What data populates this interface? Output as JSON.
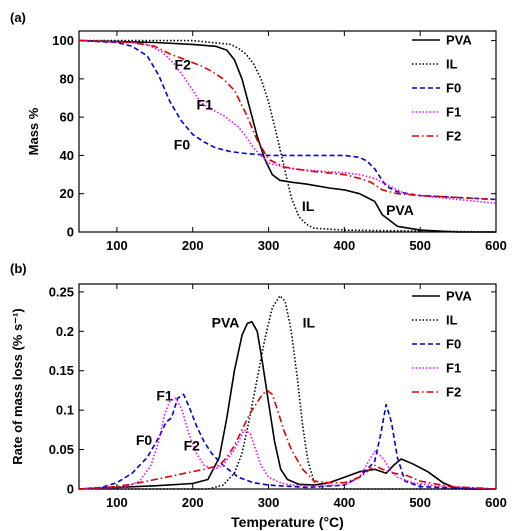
{
  "chart_data": [
    {
      "panel_label": "(a)",
      "type": "line",
      "xlabel": "",
      "ylabel": "Mass %",
      "xlim": [
        50,
        600
      ],
      "ylim": [
        0,
        105
      ],
      "xticks": [
        100,
        200,
        300,
        400,
        500,
        600
      ],
      "yticks": [
        0,
        20,
        40,
        60,
        80,
        100
      ],
      "legend_position": "top-right",
      "series": [
        {
          "name": "PVA",
          "color": "#000000",
          "dash": "solid",
          "x": [
            50,
            150,
            200,
            230,
            245,
            255,
            265,
            275,
            285,
            295,
            305,
            315,
            330,
            350,
            380,
            400,
            420,
            430,
            440,
            450,
            470,
            500,
            550,
            600
          ],
          "y": [
            100,
            99,
            98,
            97,
            95,
            90,
            80,
            65,
            50,
            38,
            30,
            27,
            26,
            25,
            23,
            22,
            20,
            18,
            16,
            9,
            3,
            1,
            0,
            0
          ]
        },
        {
          "name": "IL",
          "color": "#000000",
          "dash": "dotted",
          "x": [
            50,
            200,
            250,
            260,
            270,
            280,
            290,
            300,
            310,
            320,
            330,
            340,
            350,
            360,
            400,
            600
          ],
          "y": [
            100,
            100,
            98,
            96,
            93,
            88,
            80,
            68,
            52,
            35,
            18,
            8,
            4,
            2,
            1,
            0
          ]
        },
        {
          "name": "F0",
          "color": "#0000cc",
          "dash": "dashed",
          "x": [
            50,
            100,
            120,
            140,
            155,
            170,
            185,
            200,
            215,
            230,
            250,
            270,
            300,
            350,
            400,
            420,
            430,
            440,
            455,
            470,
            500,
            550,
            600
          ],
          "y": [
            100,
            99,
            97,
            92,
            82,
            68,
            58,
            51,
            47,
            44,
            42,
            41,
            40,
            40,
            40,
            39,
            37,
            33,
            24,
            21,
            19,
            18,
            17
          ]
        },
        {
          "name": "F1",
          "color": "#ff00ff",
          "dash": "dotted",
          "x": [
            50,
            120,
            140,
            160,
            175,
            190,
            200,
            210,
            220,
            230,
            240,
            250,
            260,
            270,
            280,
            300,
            330,
            360,
            400,
            420,
            440,
            460,
            480,
            500,
            550,
            600
          ],
          "y": [
            100,
            99,
            98,
            94,
            88,
            80,
            74,
            68,
            65,
            63,
            61,
            58,
            55,
            50,
            44,
            36,
            33,
            32,
            31,
            30,
            28,
            24,
            20,
            19,
            17,
            15
          ]
        },
        {
          "name": "F2",
          "color": "#dd0000",
          "dash": "dashdot",
          "x": [
            50,
            120,
            150,
            170,
            190,
            210,
            225,
            240,
            255,
            270,
            285,
            300,
            320,
            350,
            400,
            420,
            435,
            450,
            470,
            500,
            550,
            600
          ],
          "y": [
            100,
            99,
            97,
            93,
            90,
            87,
            84,
            80,
            74,
            62,
            48,
            38,
            34,
            32,
            30,
            28,
            26,
            22,
            20,
            19,
            18,
            17
          ]
        }
      ],
      "annotations": [
        {
          "text": "F2",
          "x": 176,
          "y": 85
        },
        {
          "text": "F1",
          "x": 205,
          "y": 64
        },
        {
          "text": "F0",
          "x": 175,
          "y": 43
        },
        {
          "text": "IL",
          "x": 344,
          "y": 11
        },
        {
          "text": "PVA",
          "x": 455,
          "y": 9
        }
      ]
    },
    {
      "panel_label": "(b)",
      "type": "line",
      "xlabel": "Temperature (°C)",
      "ylabel": "Rate of mass loss (% s⁻¹)",
      "xlim": [
        50,
        600
      ],
      "ylim": [
        0,
        0.26
      ],
      "xticks": [
        100,
        200,
        300,
        400,
        500,
        600
      ],
      "yticks": [
        0,
        0.05,
        0.1,
        0.15,
        0.2,
        0.25
      ],
      "ytick_labels": [
        "0",
        "0.05",
        "0.1",
        "0.15",
        "0.2",
        "0.25"
      ],
      "legend_position": "top-right",
      "series": [
        {
          "name": "PVA",
          "color": "#000000",
          "dash": "solid",
          "x": [
            50,
            100,
            150,
            200,
            220,
            235,
            245,
            255,
            265,
            272,
            278,
            285,
            292,
            300,
            308,
            316,
            325,
            340,
            360,
            380,
            400,
            420,
            440,
            455,
            465,
            475,
            490,
            510,
            530,
            545,
            560,
            600
          ],
          "y": [
            0,
            0.002,
            0.004,
            0.007,
            0.012,
            0.04,
            0.09,
            0.15,
            0.195,
            0.21,
            0.212,
            0.2,
            0.16,
            0.11,
            0.06,
            0.025,
            0.012,
            0.006,
            0.005,
            0.008,
            0.015,
            0.022,
            0.025,
            0.02,
            0.03,
            0.038,
            0.032,
            0.022,
            0.008,
            0.002,
            0,
            0
          ]
        },
        {
          "name": "IL",
          "color": "#000000",
          "dash": "dotted",
          "x": [
            50,
            220,
            240,
            255,
            265,
            275,
            285,
            295,
            305,
            315,
            322,
            330,
            338,
            345,
            352,
            360,
            366,
            375,
            600
          ],
          "y": [
            0,
            0,
            0.005,
            0.02,
            0.045,
            0.09,
            0.14,
            0.19,
            0.23,
            0.245,
            0.238,
            0.2,
            0.14,
            0.08,
            0.035,
            0.01,
            0.003,
            0,
            0
          ]
        },
        {
          "name": "F0",
          "color": "#0000cc",
          "dash": "dashed",
          "x": [
            50,
            80,
            100,
            120,
            140,
            155,
            165,
            172,
            180,
            188,
            195,
            205,
            215,
            225,
            240,
            260,
            280,
            300,
            350,
            400,
            420,
            430,
            440,
            448,
            455,
            462,
            470,
            480,
            500,
            550,
            600
          ],
          "y": [
            0,
            0.002,
            0.008,
            0.02,
            0.04,
            0.065,
            0.085,
            0.09,
            0.115,
            0.12,
            0.105,
            0.08,
            0.06,
            0.045,
            0.03,
            0.015,
            0.008,
            0.005,
            0.002,
            0.005,
            0.015,
            0.025,
            0.035,
            0.07,
            0.107,
            0.085,
            0.04,
            0.01,
            0.003,
            0.001,
            0
          ]
        },
        {
          "name": "F1",
          "color": "#ff00ff",
          "dash": "dotted",
          "x": [
            50,
            110,
            130,
            145,
            155,
            163,
            170,
            178,
            186,
            195,
            205,
            215,
            228,
            240,
            255,
            268,
            276,
            283,
            290,
            300,
            315,
            330,
            350,
            400,
            420,
            432,
            440,
            450,
            460,
            470,
            490,
            520,
            560,
            600
          ],
          "y": [
            0,
            0.002,
            0.01,
            0.03,
            0.06,
            0.095,
            0.112,
            0.115,
            0.1,
            0.07,
            0.045,
            0.03,
            0.025,
            0.03,
            0.05,
            0.075,
            0.07,
            0.05,
            0.03,
            0.015,
            0.008,
            0.005,
            0.004,
            0.005,
            0.015,
            0.035,
            0.048,
            0.04,
            0.025,
            0.015,
            0.008,
            0.004,
            0.002,
            0
          ]
        },
        {
          "name": "F2",
          "color": "#dd0000",
          "dash": "dashdot",
          "x": [
            50,
            100,
            130,
            160,
            190,
            215,
            235,
            245,
            255,
            265,
            275,
            285,
            292,
            298,
            305,
            312,
            320,
            330,
            345,
            360,
            380,
            400,
            420,
            430,
            440,
            450,
            465,
            480,
            500,
            540,
            600
          ],
          "y": [
            0,
            0.003,
            0.008,
            0.014,
            0.02,
            0.025,
            0.03,
            0.04,
            0.055,
            0.075,
            0.095,
            0.11,
            0.12,
            0.125,
            0.12,
            0.1,
            0.075,
            0.05,
            0.025,
            0.01,
            0.008,
            0.008,
            0.015,
            0.022,
            0.03,
            0.025,
            0.02,
            0.018,
            0.01,
            0.003,
            0
          ]
        }
      ],
      "annotations": [
        {
          "text": "PVA",
          "x": 225,
          "y": 0.205
        },
        {
          "text": "IL",
          "x": 345,
          "y": 0.205
        },
        {
          "text": "F1",
          "x": 152,
          "y": 0.112
        },
        {
          "text": "F0",
          "x": 125,
          "y": 0.056
        },
        {
          "text": "F2",
          "x": 188,
          "y": 0.049
        }
      ]
    }
  ]
}
